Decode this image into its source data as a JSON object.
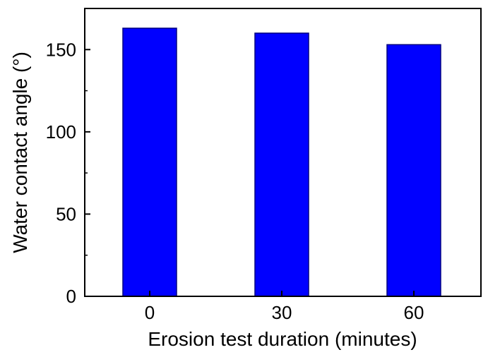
{
  "chart_data": {
    "type": "bar",
    "categories": [
      "0",
      "30",
      "60"
    ],
    "values": [
      163,
      160,
      153
    ],
    "xlabel": "Erosion test duration (minutes)",
    "ylabel": "Water contact angle (°)",
    "ylim": [
      0,
      175
    ],
    "yticks": [
      0,
      50,
      100,
      150
    ],
    "bar_color": "#0000ff",
    "bar_edge_color": "#000080",
    "grid": false,
    "legend": "none"
  }
}
